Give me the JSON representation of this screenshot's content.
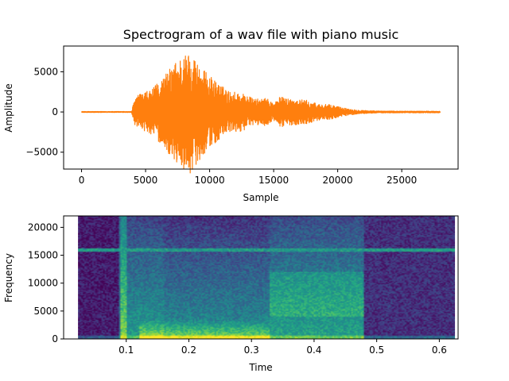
{
  "chart_data": [
    {
      "type": "line",
      "title": "Spectrogram of a wav file with piano music",
      "xlabel": "Sample",
      "ylabel": "Amplitude",
      "xlim": [
        -1400,
        29400
      ],
      "ylim": [
        -7100,
        8200
      ],
      "xticks": [
        0,
        5000,
        10000,
        15000,
        20000,
        25000
      ],
      "yticks": [
        -5000,
        0,
        5000
      ],
      "color": "#ff7f0e",
      "envelope": {
        "x": [
          0,
          3900,
          4200,
          5500,
          6500,
          7500,
          8500,
          9500,
          10500,
          11500,
          12500,
          13500,
          14500,
          15000,
          15500,
          16500,
          17500,
          18500,
          19500,
          20500,
          21500,
          23000,
          28000
        ],
        "y": [
          60,
          60,
          2000,
          2800,
          4600,
          6600,
          7600,
          5300,
          3800,
          2600,
          2400,
          1600,
          1700,
          1100,
          1900,
          1600,
          1500,
          1000,
          900,
          500,
          250,
          120,
          100
        ]
      }
    },
    {
      "type": "heatmap",
      "xlabel": "Time",
      "ylabel": "Frequency",
      "xlim": [
        0.0,
        0.63
      ],
      "ylim": [
        0,
        22050
      ],
      "data_xrange": [
        0.023,
        0.625
      ],
      "xticks": [
        0.1,
        0.2,
        0.3,
        0.4,
        0.5,
        0.6
      ],
      "yticks": [
        0,
        5000,
        10000,
        15000,
        20000
      ],
      "colormap": "viridis",
      "line_frequency": 15900
    }
  ]
}
